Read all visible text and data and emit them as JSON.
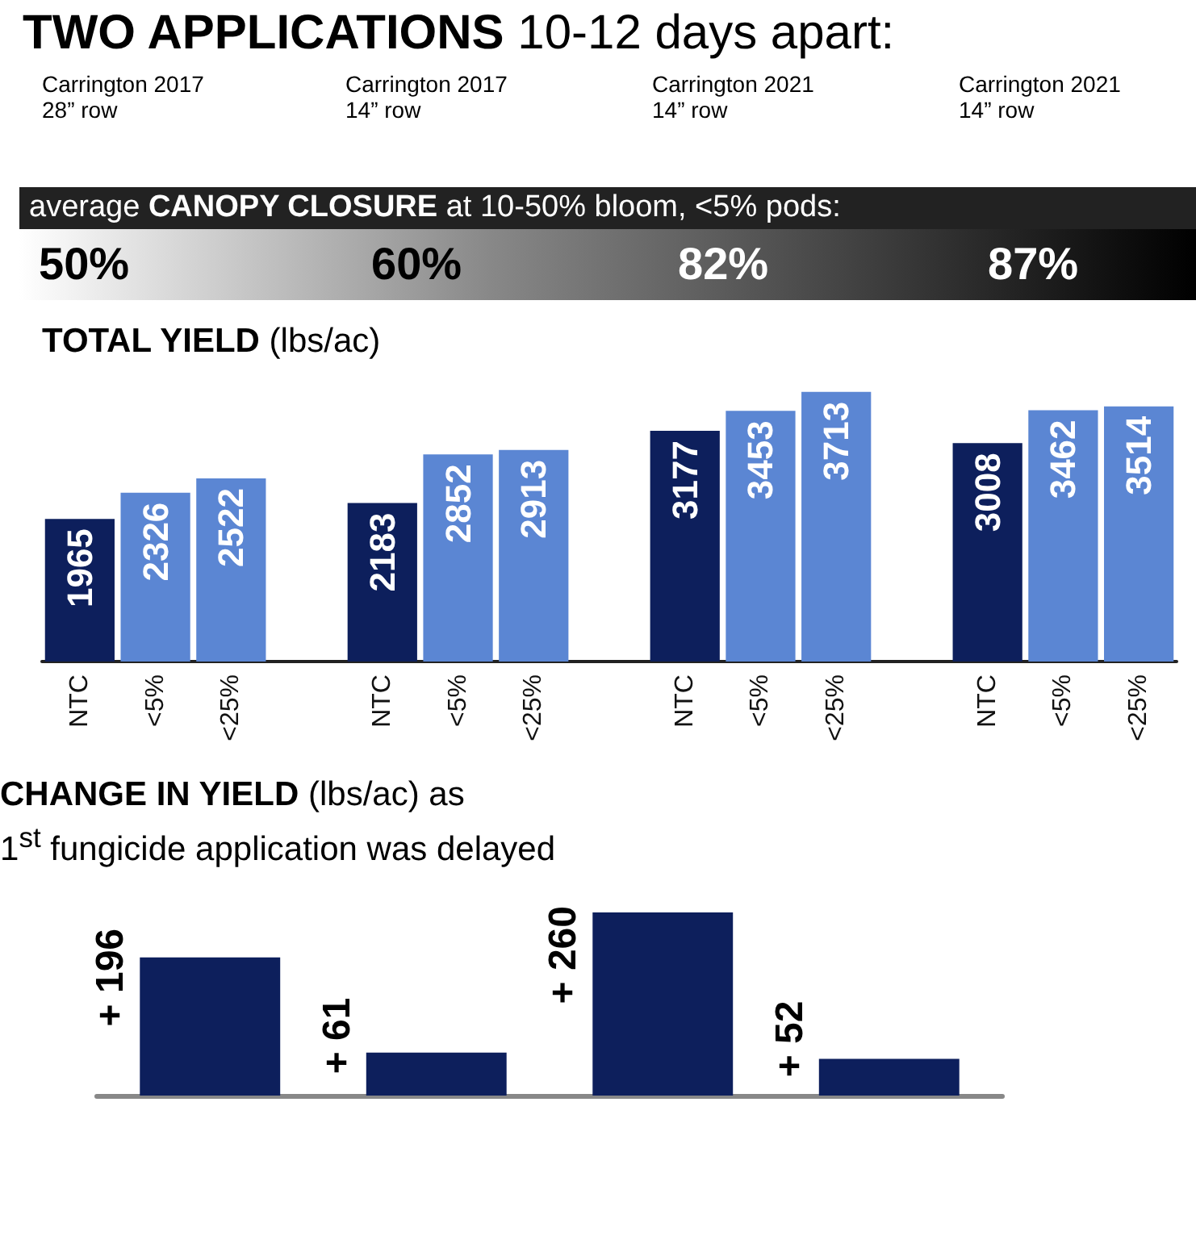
{
  "chart_data": [
    {
      "type": "bar",
      "title": "TWO APPLICATIONS 10-12 days apart:",
      "ylabel": "TOTAL YIELD (lbs/ac)",
      "annotations": [
        "Carrington 2017\n28” row",
        "Carrington 2017\n14” row",
        "Carrington 2021\n14” row",
        "Carrington 2021\n14” row",
        "average CANOPY CLOSURE at 10-50% bloom, <5% pods:",
        "50%",
        "60%",
        "82%",
        "87%"
      ],
      "categories": [
        "NTC",
        "<5%",
        "<25%",
        null,
        "NTC",
        "<5%",
        "<25%",
        null,
        "NTC",
        "<5%",
        "<25%",
        null,
        "NTC",
        "<5%",
        "<25%"
      ],
      "values": [
        1965,
        2326,
        2522,
        null,
        2183,
        2852,
        2913,
        null,
        3177,
        3453,
        3713,
        null,
        3008,
        3462,
        3514
      ],
      "colors": [
        "#0d1f5c",
        "#5b86d3",
        "#5b86d3",
        null,
        "#0d1f5c",
        "#5b86d3",
        "#5b86d3",
        null,
        "#0d1f5c",
        "#5b86d3",
        "#5b86d3",
        null,
        "#0d1f5c",
        "#5b86d3",
        "#5b86d3"
      ],
      "data_labels": true
    },
    {
      "type": "bar",
      "title": "CHANGE IN YIELD (lbs/ac) as\n1$^{st}$ fungicide application was delayed",
      "categories": [
        null,
        null,
        null,
        null
      ],
      "values": [
        196,
        61,
        260,
        52
      ],
      "color": "#0d1f5c",
      "value_labels": [
        "+ 196",
        "+ 61",
        "+ 260",
        "+ 52"
      ]
    }
  ]
}
